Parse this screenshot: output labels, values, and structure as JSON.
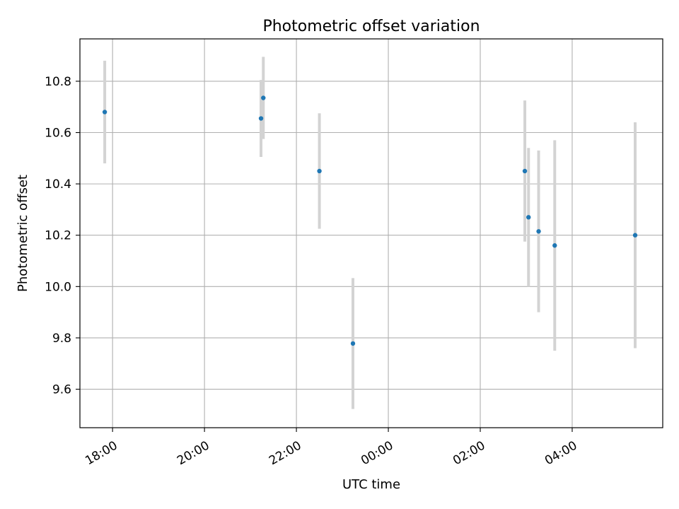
{
  "chart_data": {
    "type": "scatter",
    "title": "Photometric offset variation",
    "xlabel": "UTC time",
    "ylabel": "Photometric offset",
    "grid": true,
    "x_unit": "hours since 00:00 UTC (negative = previous day)",
    "xlim": [
      -6.71,
      5.97
    ],
    "ylim": [
      9.45,
      10.965
    ],
    "x_ticks": [
      {
        "value": -6,
        "label": "18:00"
      },
      {
        "value": -4,
        "label": "20:00"
      },
      {
        "value": -2,
        "label": "22:00"
      },
      {
        "value": 0,
        "label": "00:00"
      },
      {
        "value": 2,
        "label": "02:00"
      },
      {
        "value": 4,
        "label": "04:00"
      }
    ],
    "y_ticks": [
      {
        "value": 9.6,
        "label": "9.6"
      },
      {
        "value": 9.8,
        "label": "9.8"
      },
      {
        "value": 10.0,
        "label": "10.0"
      },
      {
        "value": 10.2,
        "label": "10.2"
      },
      {
        "value": 10.4,
        "label": "10.4"
      },
      {
        "value": 10.6,
        "label": "10.6"
      },
      {
        "value": 10.8,
        "label": "10.8"
      }
    ],
    "colors": {
      "point": "#1f77b4",
      "errorbar": "#d3d3d3",
      "grid": "#b0b0b0"
    },
    "points": [
      {
        "x": -6.17,
        "y": 10.68,
        "err": 0.2
      },
      {
        "x": -2.77,
        "y": 10.655,
        "err": 0.15
      },
      {
        "x": -2.72,
        "y": 10.735,
        "err": 0.16
      },
      {
        "x": -1.5,
        "y": 10.45,
        "err": 0.225
      },
      {
        "x": -0.77,
        "y": 9.778,
        "err": 0.255
      },
      {
        "x": 2.97,
        "y": 10.45,
        "err": 0.275
      },
      {
        "x": 3.05,
        "y": 10.27,
        "err": 0.27
      },
      {
        "x": 3.27,
        "y": 10.215,
        "err": 0.315
      },
      {
        "x": 3.62,
        "y": 10.16,
        "err": 0.41
      },
      {
        "x": 5.37,
        "y": 10.2,
        "err": 0.44
      }
    ]
  }
}
